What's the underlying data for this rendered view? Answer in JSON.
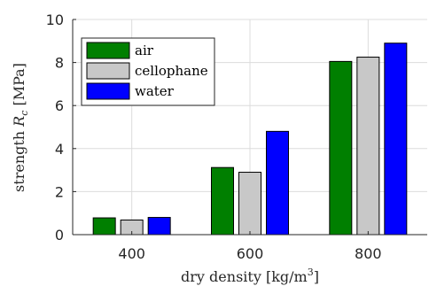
{
  "chart_data": {
    "type": "bar",
    "categories": [
      "400",
      "600",
      "800"
    ],
    "series": [
      {
        "name": "air",
        "color": "#007f00",
        "values": [
          0.78,
          3.12,
          8.05
        ]
      },
      {
        "name": "cellophane",
        "color": "#c8c8c8",
        "values": [
          0.68,
          2.9,
          8.25
        ]
      },
      {
        "name": "water",
        "color": "#0000ff",
        "values": [
          0.8,
          4.8,
          8.9
        ]
      }
    ],
    "title": "",
    "xlabel_main": "dry density ",
    "xlabel_unit": "[kg/m",
    "xlabel_sup": "3",
    "xlabel_close": "]",
    "ylabel_pre": "strength ",
    "ylabel_var": "R",
    "ylabel_sub": "c",
    "ylabel_unit": " [MPa]",
    "ylim": [
      0,
      10
    ],
    "yticks": [
      "0",
      "2",
      "4",
      "6",
      "8",
      "10"
    ],
    "grid": true,
    "legend_position": "top-left"
  }
}
